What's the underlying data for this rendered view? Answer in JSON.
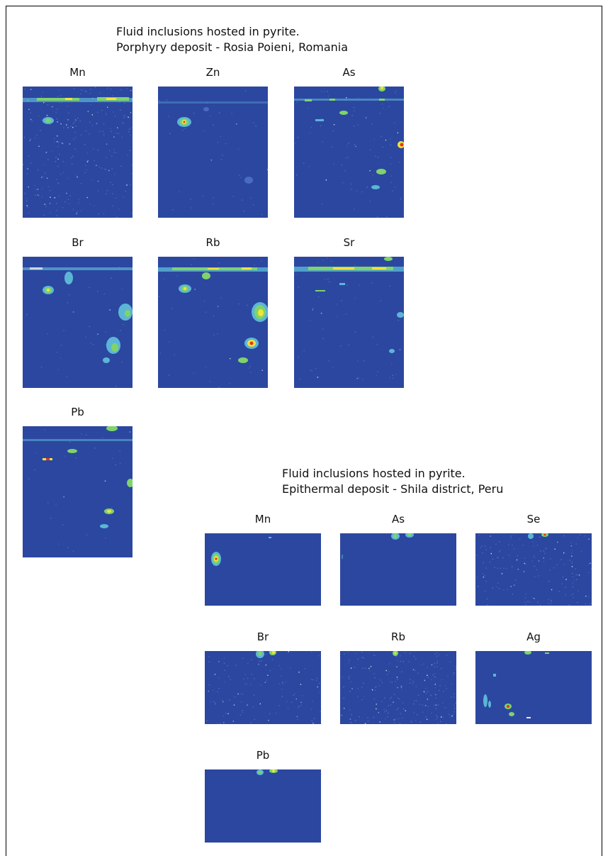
{
  "figure": {
    "section_1": {
      "caption_line1": "Fluid inclusions hosted in pyrite.",
      "caption_line2": "Porphyry deposit - Rosia Poieni, Romania",
      "panels": [
        {
          "element": "Mn"
        },
        {
          "element": "Zn"
        },
        {
          "element": "As"
        },
        {
          "element": "Br"
        },
        {
          "element": "Rb"
        },
        {
          "element": "Sr"
        },
        {
          "element": "Pb"
        }
      ]
    },
    "section_2": {
      "caption_line1": "Fluid inclusions hosted in pyrite.",
      "caption_line2": "Epithermal deposit - Shila district, Peru",
      "panels": [
        {
          "element": "Mn"
        },
        {
          "element": "As"
        },
        {
          "element": "Se"
        },
        {
          "element": "Br"
        },
        {
          "element": "Rb"
        },
        {
          "element": "Ag"
        },
        {
          "element": "Pb"
        }
      ]
    },
    "colormap": {
      "background": "#2c47a0",
      "low": "#5bb6d6",
      "mid": "#7fd36a",
      "high": "#f2e33a",
      "peak": "#e8341c"
    }
  }
}
